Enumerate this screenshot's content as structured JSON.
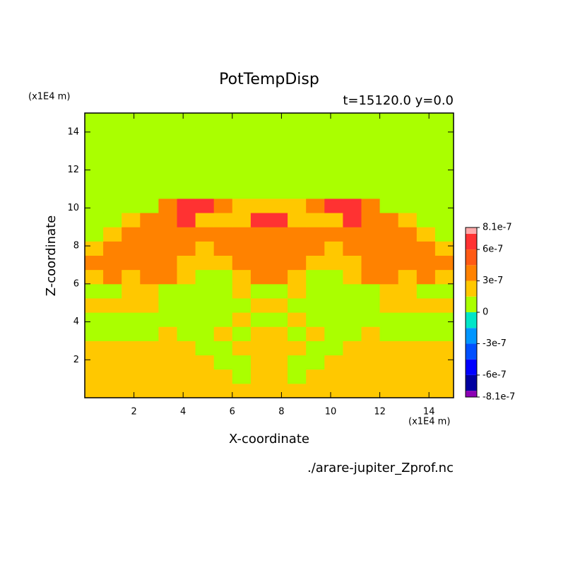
{
  "chart_data": {
    "type": "contour",
    "title": "PotTempDisp",
    "subtitle": "t=15120.0 y=0.0",
    "x_unit": "(x1E4 m)",
    "y_unit": "(x1E4 m)",
    "xlabel": "X-coordinate",
    "ylabel": "Z-coordinate",
    "source": "./arare-jupiter_Zprof.nc",
    "xlim": [
      0,
      15
    ],
    "ylim": [
      0,
      15
    ],
    "xticks": [
      2,
      4,
      6,
      8,
      10,
      12,
      14
    ],
    "yticks": [
      2,
      4,
      6,
      8,
      10,
      12,
      14
    ],
    "x": [
      0.375,
      1.125,
      1.875,
      2.625,
      3.375,
      4.125,
      4.875,
      5.625,
      6.375,
      7.125,
      7.875,
      8.625,
      9.375,
      10.125,
      10.875,
      11.625,
      12.375,
      13.125,
      13.875,
      14.625
    ],
    "y": [
      0.375,
      1.125,
      1.875,
      2.625,
      3.375,
      4.125,
      4.875,
      5.625,
      6.375,
      7.125,
      7.875,
      8.625,
      9.375,
      10.125,
      10.875,
      11.625,
      12.375,
      13.125,
      13.875,
      14.625
    ],
    "z": [
      [
        2e-07,
        2e-07,
        2e-07,
        2e-07,
        2e-07,
        2e-07,
        2e-07,
        2e-07,
        2e-07,
        2e-07,
        2e-07,
        2e-07,
        2e-07,
        2e-07,
        2e-07,
        2e-07,
        2e-07,
        2e-07,
        2e-07,
        2e-07
      ],
      [
        2e-07,
        2e-07,
        2e-07,
        2e-07,
        2e-07,
        2e-07,
        2e-07,
        2e-07,
        5e-08,
        2e-07,
        2e-07,
        5e-08,
        2e-07,
        2e-07,
        2e-07,
        2e-07,
        2e-07,
        2e-07,
        2e-07,
        2e-07
      ],
      [
        2e-07,
        2e-07,
        2e-07,
        2e-07,
        2e-07,
        2e-07,
        2e-07,
        5e-08,
        5e-08,
        2e-07,
        2e-07,
        5e-08,
        5e-08,
        2e-07,
        2e-07,
        2e-07,
        2e-07,
        2e-07,
        2e-07,
        2e-07
      ],
      [
        2e-07,
        2e-07,
        2e-07,
        2e-07,
        2e-07,
        2e-07,
        5e-08,
        5e-08,
        2e-07,
        2e-07,
        2e-07,
        2e-07,
        5e-08,
        5e-08,
        2e-07,
        2e-07,
        2e-07,
        2e-07,
        2e-07,
        2e-07
      ],
      [
        5e-08,
        5e-08,
        5e-08,
        5e-08,
        2e-07,
        5e-08,
        5e-08,
        2e-07,
        5e-08,
        2e-07,
        2e-07,
        5e-08,
        2e-07,
        5e-08,
        5e-08,
        2e-07,
        5e-08,
        5e-08,
        5e-08,
        5e-08
      ],
      [
        5e-08,
        5e-08,
        5e-08,
        5e-08,
        5e-08,
        5e-08,
        5e-08,
        5e-08,
        2e-07,
        5e-08,
        5e-08,
        2e-07,
        5e-08,
        5e-08,
        5e-08,
        5e-08,
        5e-08,
        5e-08,
        5e-08,
        5e-08
      ],
      [
        2e-07,
        2e-07,
        2e-07,
        2e-07,
        5e-08,
        5e-08,
        5e-08,
        5e-08,
        5e-08,
        2e-07,
        2e-07,
        5e-08,
        5e-08,
        5e-08,
        5e-08,
        5e-08,
        2e-07,
        2e-07,
        2e-07,
        2e-07
      ],
      [
        5e-08,
        5e-08,
        2e-07,
        2e-07,
        5e-08,
        5e-08,
        5e-08,
        5e-08,
        2e-07,
        5e-08,
        5e-08,
        2e-07,
        5e-08,
        5e-08,
        5e-08,
        5e-08,
        2e-07,
        2e-07,
        5e-08,
        5e-08
      ],
      [
        2e-07,
        4e-07,
        2e-07,
        4e-07,
        4e-07,
        2e-07,
        5e-08,
        5e-08,
        2e-07,
        4e-07,
        4e-07,
        2e-07,
        5e-08,
        5e-08,
        2e-07,
        4e-07,
        4e-07,
        2e-07,
        4e-07,
        2e-07
      ],
      [
        4e-07,
        4e-07,
        4e-07,
        4e-07,
        4e-07,
        2e-07,
        2e-07,
        2e-07,
        4e-07,
        4e-07,
        4e-07,
        4e-07,
        2e-07,
        2e-07,
        2e-07,
        4e-07,
        4e-07,
        4e-07,
        4e-07,
        4e-07
      ],
      [
        2e-07,
        4e-07,
        4e-07,
        4e-07,
        4e-07,
        4e-07,
        2e-07,
        4e-07,
        4e-07,
        4e-07,
        4e-07,
        4e-07,
        4e-07,
        2e-07,
        4e-07,
        4e-07,
        4e-07,
        4e-07,
        4e-07,
        2e-07
      ],
      [
        5e-08,
        2e-07,
        4e-07,
        4e-07,
        4e-07,
        4e-07,
        4e-07,
        4e-07,
        4e-07,
        4e-07,
        4e-07,
        4e-07,
        4e-07,
        4e-07,
        4e-07,
        4e-07,
        4e-07,
        4e-07,
        2e-07,
        5e-08
      ],
      [
        5e-08,
        5e-08,
        2e-07,
        4e-07,
        4e-07,
        7e-07,
        2e-07,
        2e-07,
        2e-07,
        7e-07,
        7e-07,
        2e-07,
        2e-07,
        2e-07,
        7e-07,
        4e-07,
        4e-07,
        2e-07,
        5e-08,
        5e-08
      ],
      [
        5e-08,
        5e-08,
        5e-08,
        5e-08,
        4e-07,
        7e-07,
        7e-07,
        4e-07,
        2e-07,
        2e-07,
        2e-07,
        2e-07,
        4e-07,
        7e-07,
        7e-07,
        4e-07,
        5e-08,
        5e-08,
        5e-08,
        5e-08
      ],
      [
        5e-08,
        5e-08,
        5e-08,
        5e-08,
        5e-08,
        5e-08,
        5e-08,
        5e-08,
        5e-08,
        5e-08,
        5e-08,
        5e-08,
        5e-08,
        5e-08,
        5e-08,
        5e-08,
        5e-08,
        5e-08,
        5e-08,
        5e-08
      ],
      [
        5e-08,
        5e-08,
        5e-08,
        5e-08,
        5e-08,
        5e-08,
        5e-08,
        5e-08,
        5e-08,
        5e-08,
        5e-08,
        5e-08,
        5e-08,
        5e-08,
        5e-08,
        5e-08,
        5e-08,
        5e-08,
        5e-08,
        5e-08
      ],
      [
        5e-08,
        5e-08,
        5e-08,
        5e-08,
        5e-08,
        5e-08,
        5e-08,
        5e-08,
        5e-08,
        5e-08,
        5e-08,
        5e-08,
        5e-08,
        5e-08,
        5e-08,
        5e-08,
        5e-08,
        5e-08,
        5e-08,
        5e-08
      ],
      [
        5e-08,
        5e-08,
        5e-08,
        5e-08,
        5e-08,
        5e-08,
        5e-08,
        5e-08,
        5e-08,
        5e-08,
        5e-08,
        5e-08,
        5e-08,
        5e-08,
        5e-08,
        5e-08,
        5e-08,
        5e-08,
        5e-08,
        5e-08
      ],
      [
        5e-08,
        5e-08,
        5e-08,
        5e-08,
        5e-08,
        5e-08,
        5e-08,
        5e-08,
        5e-08,
        5e-08,
        5e-08,
        5e-08,
        5e-08,
        5e-08,
        5e-08,
        5e-08,
        5e-08,
        5e-08,
        5e-08,
        5e-08
      ],
      [
        5e-08,
        5e-08,
        5e-08,
        5e-08,
        5e-08,
        5e-08,
        5e-08,
        5e-08,
        5e-08,
        5e-08,
        5e-08,
        5e-08,
        5e-08,
        5e-08,
        5e-08,
        5e-08,
        5e-08,
        5e-08,
        5e-08,
        5e-08
      ]
    ],
    "levels": [
      -8.1e-07,
      -7.5e-07,
      -6e-07,
      -4.5e-07,
      -3e-07,
      -1.5e-07,
      0,
      1.5e-07,
      3e-07,
      4.5e-07,
      6e-07,
      7.5e-07,
      8.1e-07
    ],
    "colors": [
      "#8c00b4",
      "#0000a0",
      "#0000ff",
      "#0050ff",
      "#0096ff",
      "#00e6c8",
      "#aaff00",
      "#ffc800",
      "#ff8200",
      "#ff5a14",
      "#ff3232",
      "#ffaaaa"
    ],
    "cbar_ticks": [
      8.1e-07,
      6e-07,
      3e-07,
      0,
      -3e-07,
      -6e-07,
      -8.1e-07
    ]
  }
}
